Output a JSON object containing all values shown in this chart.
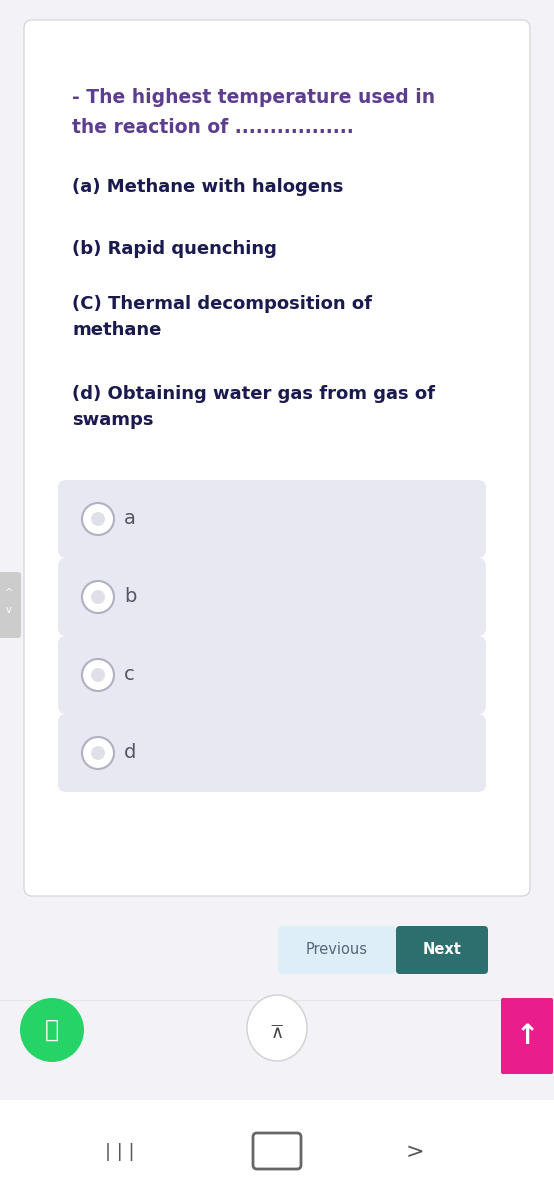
{
  "bg_color": "#f2f2f7",
  "card_bg": "#ffffff",
  "card_border_color": "#d0d0d8",
  "title_color": "#5c3d8f",
  "question_line1": "- The highest temperature used in",
  "question_line2": "the reaction of .................",
  "opt_texts": [
    "(a) Methane with halogens",
    "(b) Rapid quenching",
    "(C) Thermal decomposition of\nmethane",
    "(d) Obtaining water gas from gas of\nswamps"
  ],
  "option_labels": [
    "a",
    "b",
    "c",
    "d"
  ],
  "option_box_color": "#e8e8f2",
  "option_label_color": "#555566",
  "radio_edge_color": "#b0b0c0",
  "radio_inner_color": "#e0e0e8",
  "prev_btn_text": "Previous",
  "next_btn_text": "Next",
  "prev_btn_color": "#ddeef8",
  "next_btn_color": "#2d6e6e",
  "next_btn_text_color": "#ffffff",
  "prev_btn_text_color": "#556677",
  "whatsapp_color": "#25d366",
  "up_btn_color": "#e91e8c",
  "bottom_nav_color": "#f8f8f8",
  "side_tab_color": "#cccccc",
  "text_color_dark": "#1a1a4e",
  "opt_fontsize": 13,
  "question_fontsize": 13.5
}
